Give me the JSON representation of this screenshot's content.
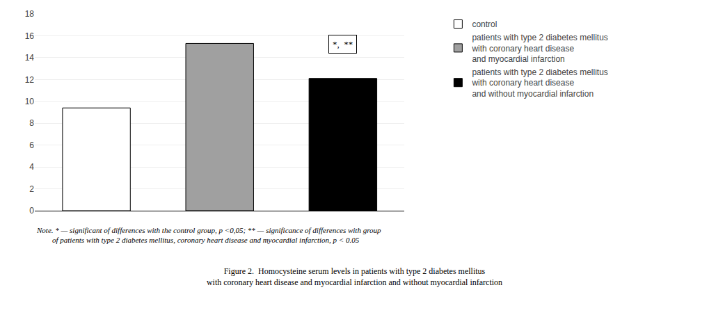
{
  "chart_data": {
    "type": "bar",
    "title": "Figure 2.  Homocysteine serum levels in patients with type 2 diabetes mellitus\nwith coronary heart disease and myocardial infarction and without myocardial infarction",
    "categories": [
      null,
      null,
      null
    ],
    "series": [
      {
        "name": "control",
        "color": "#ffffff",
        "values": [
          9.4,
          null,
          null
        ]
      },
      {
        "name": "patients with type 2 diabetes mellitus\nwith coronary heart disease\nand myocardial infarction",
        "color": "#a0a0a0",
        "values": [
          null,
          15.3,
          null
        ]
      },
      {
        "name": "patients with type 2 diabetes mellitus\nwith coronary heart disease\nand without myocardial infarction",
        "color": "#000000",
        "values": [
          null,
          null,
          12.1
        ]
      }
    ],
    "ylim": [
      0,
      18
    ],
    "yticks": [
      0,
      2,
      4,
      6,
      8,
      10,
      12,
      14,
      16,
      18
    ],
    "grid": true,
    "tick_labels": "y",
    "legend": "right",
    "annotations": [
      {
        "text": "*,  **",
        "category": 2
      },
      {
        "text": "Note. * — significant of differences with the control group, p <0,05; ** — significance of differences with group\n        of patients with type 2 diabetes mellitus, coronary heart disease and myocardial infarction, p < 0.05"
      }
    ]
  }
}
